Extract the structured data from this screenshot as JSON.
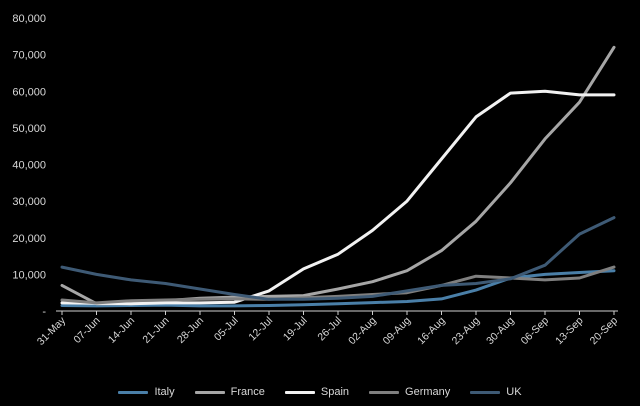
{
  "chart_data": {
    "type": "line",
    "title": "",
    "xlabel": "",
    "ylabel": "",
    "categories": [
      "31-May",
      "07-Jun",
      "14-Jun",
      "21-Jun",
      "28-Jun",
      "05-Jul",
      "12-Jul",
      "19-Jul",
      "26-Jul",
      "02-Aug",
      "09-Aug",
      "16-Aug",
      "23-Aug",
      "30-Aug",
      "06-Sep",
      "13-Sep",
      "20-Sep"
    ],
    "ylim": [
      0,
      80000
    ],
    "yticks": [
      "-",
      "10,000",
      "20,000",
      "30,000",
      "40,000",
      "50,000",
      "60,000",
      "70,000",
      "80,000"
    ],
    "grid": false,
    "legend_position": "bottom",
    "series": [
      {
        "name": "Italy",
        "color": "#4a7fa8",
        "values": [
          1500,
          1400,
          1500,
          1600,
          1400,
          1400,
          1500,
          1700,
          2000,
          2300,
          2600,
          3300,
          5700,
          9000,
          10000,
          10500,
          11000
        ]
      },
      {
        "name": "France",
        "color": "#a6a6a6",
        "values": [
          7000,
          2000,
          2000,
          2800,
          3500,
          3800,
          4000,
          4200,
          6000,
          8000,
          11000,
          16500,
          24500,
          35000,
          47000,
          57000,
          72000
        ]
      },
      {
        "name": "Spain",
        "color": "#f2f2f2",
        "values": [
          2200,
          2100,
          2000,
          2200,
          2200,
          2400,
          5500,
          11500,
          15500,
          22000,
          30000,
          41500,
          53000,
          59500,
          60000,
          59000,
          59000
        ]
      },
      {
        "name": "Germany",
        "color": "#7f7f7f",
        "values": [
          3000,
          2200,
          2800,
          3000,
          3200,
          3300,
          3200,
          3600,
          4000,
          4500,
          5000,
          7000,
          9500,
          9000,
          8500,
          9000,
          12000
        ]
      },
      {
        "name": "UK",
        "color": "#3e5a75",
        "values": [
          12000,
          10000,
          8500,
          7500,
          6000,
          4500,
          3200,
          3200,
          3500,
          4000,
          5500,
          7000,
          7500,
          8800,
          12500,
          21000,
          25500
        ]
      }
    ]
  }
}
